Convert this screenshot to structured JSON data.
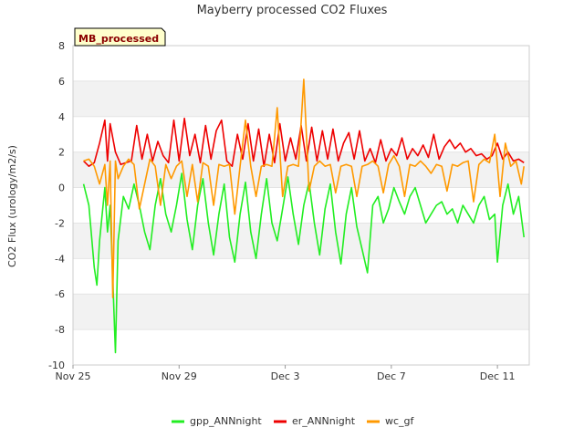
{
  "chart_data": {
    "type": "line",
    "title": "Mayberry processed CO2 Fluxes",
    "xlabel": "",
    "ylabel": "CO2 Flux (urology/m2/s)",
    "ylim": [
      -10,
      8
    ],
    "yticks": [
      -10,
      -8,
      -6,
      -4,
      -2,
      0,
      2,
      4,
      6,
      8
    ],
    "xlim": [
      0,
      17.2
    ],
    "xticks": [
      {
        "value": 0,
        "label": "Nov 25"
      },
      {
        "value": 4,
        "label": "Nov 29"
      },
      {
        "value": 8,
        "label": "Dec 3"
      },
      {
        "value": 12,
        "label": "Dec 7"
      },
      {
        "value": 16,
        "label": "Dec 11"
      }
    ],
    "badge": "MB_processed",
    "series": [
      {
        "name": "gpp_ANNnight",
        "color": "#22ee22",
        "x": [
          0.4,
          0.6,
          0.8,
          0.9,
          1.0,
          1.2,
          1.3,
          1.4,
          1.6,
          1.7,
          1.9,
          2.1,
          2.3,
          2.5,
          2.7,
          2.9,
          3.1,
          3.3,
          3.5,
          3.7,
          3.9,
          4.1,
          4.3,
          4.5,
          4.7,
          4.9,
          5.1,
          5.3,
          5.5,
          5.7,
          5.9,
          6.1,
          6.3,
          6.5,
          6.7,
          6.9,
          7.1,
          7.3,
          7.5,
          7.7,
          7.9,
          8.1,
          8.3,
          8.5,
          8.7,
          8.9,
          9.1,
          9.3,
          9.5,
          9.7,
          9.9,
          10.1,
          10.3,
          10.5,
          10.7,
          10.9,
          11.1,
          11.3,
          11.5,
          11.7,
          11.9,
          12.1,
          12.3,
          12.5,
          12.7,
          12.9,
          13.1,
          13.3,
          13.5,
          13.7,
          13.9,
          14.1,
          14.3,
          14.5,
          14.7,
          14.9,
          15.1,
          15.3,
          15.5,
          15.7,
          15.9,
          16.0,
          16.2,
          16.4,
          16.6,
          16.8,
          17.0
        ],
        "values": [
          0.2,
          -1.0,
          -4.5,
          -5.5,
          -3.0,
          0.0,
          -2.5,
          -1.0,
          -9.3,
          -3.0,
          -0.5,
          -1.2,
          0.2,
          -1.0,
          -2.5,
          -3.5,
          -1.0,
          0.5,
          -1.5,
          -2.5,
          -1.0,
          0.8,
          -1.8,
          -3.5,
          -1.0,
          0.5,
          -2.0,
          -3.8,
          -1.5,
          0.2,
          -2.8,
          -4.2,
          -1.5,
          0.3,
          -2.5,
          -4.0,
          -1.5,
          0.5,
          -2.0,
          -3.0,
          -1.2,
          0.6,
          -1.5,
          -3.2,
          -1.0,
          0.3,
          -2.0,
          -3.8,
          -1.2,
          0.2,
          -2.5,
          -4.3,
          -1.5,
          0.0,
          -2.2,
          -3.5,
          -4.8,
          -1.0,
          -0.5,
          -2.0,
          -1.2,
          0.0,
          -0.8,
          -1.5,
          -0.5,
          0.0,
          -1.0,
          -2.0,
          -1.5,
          -1.0,
          -0.8,
          -1.5,
          -1.2,
          -2.0,
          -1.0,
          -1.5,
          -2.0,
          -1.0,
          -0.5,
          -1.8,
          -1.5,
          -4.2,
          -1.0,
          0.2,
          -1.5,
          -0.5,
          -2.8
        ]
      },
      {
        "name": "er_ANNnight",
        "color": "#ee0000",
        "x": [
          0.4,
          0.6,
          0.8,
          1.0,
          1.2,
          1.3,
          1.4,
          1.6,
          1.8,
          2.0,
          2.2,
          2.4,
          2.6,
          2.8,
          3.0,
          3.2,
          3.4,
          3.6,
          3.8,
          4.0,
          4.2,
          4.4,
          4.6,
          4.8,
          5.0,
          5.2,
          5.4,
          5.6,
          5.8,
          6.0,
          6.2,
          6.4,
          6.6,
          6.8,
          7.0,
          7.2,
          7.4,
          7.6,
          7.8,
          8.0,
          8.2,
          8.4,
          8.6,
          8.8,
          9.0,
          9.2,
          9.4,
          9.6,
          9.8,
          10.0,
          10.2,
          10.4,
          10.6,
          10.8,
          11.0,
          11.2,
          11.4,
          11.6,
          11.8,
          12.0,
          12.2,
          12.4,
          12.6,
          12.8,
          13.0,
          13.2,
          13.4,
          13.6,
          13.8,
          14.0,
          14.2,
          14.4,
          14.6,
          14.8,
          15.0,
          15.2,
          15.4,
          15.6,
          15.8,
          16.0,
          16.2,
          16.4,
          16.6,
          16.8,
          17.0
        ],
        "values": [
          1.5,
          1.2,
          1.4,
          2.5,
          3.8,
          1.5,
          3.6,
          2.0,
          1.3,
          1.4,
          1.5,
          3.5,
          1.6,
          3.0,
          1.5,
          2.6,
          1.8,
          1.4,
          3.8,
          1.5,
          3.9,
          1.8,
          3.0,
          1.4,
          3.5,
          1.6,
          3.2,
          3.8,
          1.5,
          1.2,
          3.0,
          1.6,
          3.6,
          1.5,
          3.3,
          1.2,
          3.0,
          1.4,
          3.6,
          1.5,
          2.8,
          1.6,
          3.5,
          1.5,
          3.4,
          1.5,
          3.2,
          1.6,
          3.3,
          1.5,
          2.5,
          3.1,
          1.6,
          3.2,
          1.5,
          2.2,
          1.4,
          2.7,
          1.5,
          2.2,
          1.8,
          2.8,
          1.6,
          2.2,
          1.8,
          2.4,
          1.7,
          3.0,
          1.6,
          2.3,
          2.7,
          2.2,
          2.5,
          2.0,
          2.2,
          1.8,
          1.9,
          1.6,
          1.8,
          2.5,
          1.6,
          2.0,
          1.5,
          1.6,
          1.4
        ]
      },
      {
        "name": "wc_gf",
        "color": "#ff9900",
        "x": [
          0.4,
          0.6,
          0.8,
          1.0,
          1.2,
          1.3,
          1.4,
          1.5,
          1.6,
          1.7,
          1.9,
          2.1,
          2.3,
          2.5,
          2.7,
          2.9,
          3.1,
          3.3,
          3.5,
          3.7,
          3.9,
          4.1,
          4.3,
          4.5,
          4.7,
          4.9,
          5.1,
          5.3,
          5.5,
          5.7,
          5.9,
          6.1,
          6.3,
          6.5,
          6.7,
          6.9,
          7.1,
          7.3,
          7.5,
          7.7,
          7.9,
          8.1,
          8.3,
          8.5,
          8.7,
          8.9,
          9.1,
          9.3,
          9.5,
          9.7,
          9.9,
          10.1,
          10.3,
          10.5,
          10.7,
          10.9,
          11.1,
          11.3,
          11.5,
          11.7,
          11.9,
          12.1,
          12.3,
          12.5,
          12.7,
          12.9,
          13.1,
          13.3,
          13.5,
          13.7,
          13.9,
          14.1,
          14.3,
          14.5,
          14.7,
          14.9,
          15.1,
          15.3,
          15.5,
          15.7,
          15.9,
          16.1,
          16.3,
          16.5,
          16.7,
          16.9,
          17.0
        ],
        "values": [
          1.5,
          1.6,
          1.2,
          0.2,
          1.3,
          -1.0,
          1.5,
          -6.2,
          1.5,
          0.5,
          1.2,
          1.6,
          1.3,
          -1.2,
          0.2,
          1.6,
          1.2,
          -1.0,
          1.3,
          0.5,
          1.2,
          1.5,
          -0.5,
          1.3,
          -0.8,
          1.4,
          1.2,
          -1.0,
          1.3,
          1.2,
          1.3,
          -1.5,
          1.2,
          3.8,
          1.2,
          -0.5,
          1.2,
          1.3,
          1.2,
          4.5,
          -0.5,
          1.2,
          1.3,
          1.2,
          6.1,
          -0.2,
          1.2,
          1.5,
          1.2,
          1.3,
          -0.3,
          1.2,
          1.3,
          1.2,
          -0.5,
          1.2,
          1.3,
          1.5,
          1.2,
          -0.3,
          1.3,
          1.8,
          1.2,
          -0.5,
          1.3,
          1.2,
          1.5,
          1.2,
          0.8,
          1.3,
          1.2,
          -0.2,
          1.3,
          1.2,
          1.4,
          1.5,
          -0.8,
          1.3,
          1.6,
          1.4,
          3.0,
          -0.5,
          2.5,
          1.2,
          1.5,
          0.2,
          1.2
        ]
      }
    ]
  }
}
